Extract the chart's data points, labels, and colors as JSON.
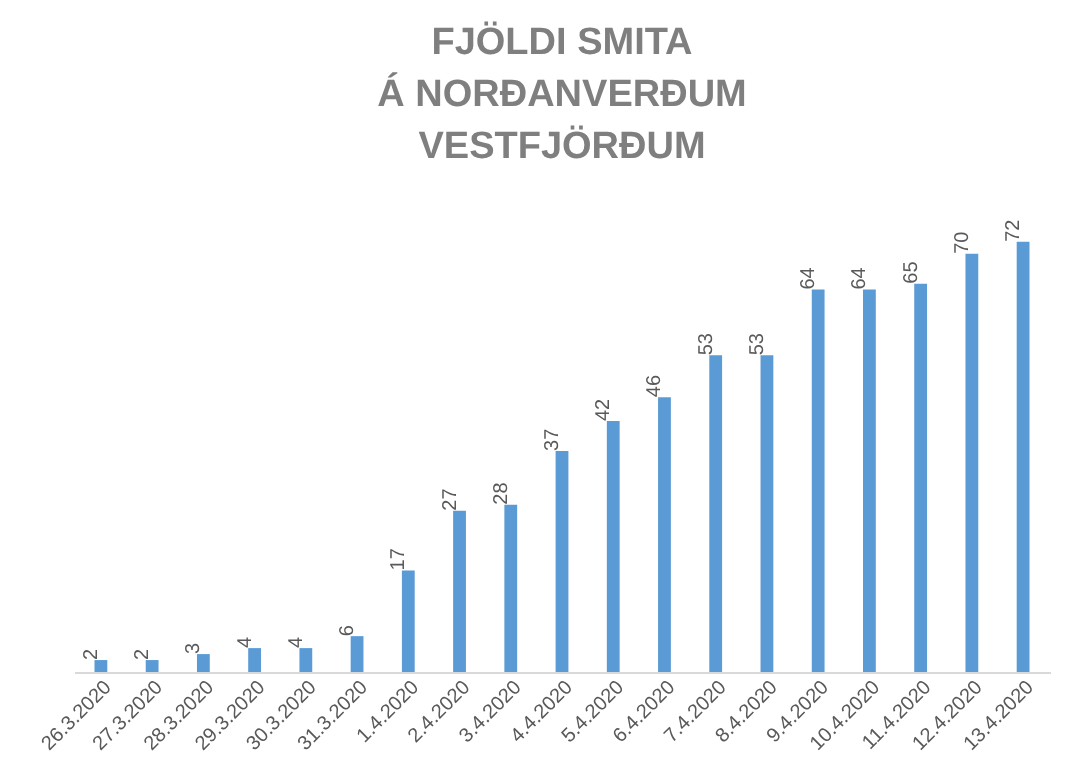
{
  "chart_data": {
    "type": "bar",
    "title": "FJÖLDI SMITA\nÁ NORÐANVERÐUM\nVESTFJÖRÐUM",
    "categories": [
      "26.3.2020",
      "27.3.2020",
      "28.3.2020",
      "29.3.2020",
      "30.3.2020",
      "31.3.2020",
      "1.4.2020",
      "2.4.2020",
      "3.4.2020",
      "4.4.2020",
      "5.4.2020",
      "6.4.2020",
      "7.4.2020",
      "8.4.2020",
      "9.4.2020",
      "10.4.2020",
      "11.4.2020",
      "12.4.2020",
      "13.4.2020"
    ],
    "values": [
      2,
      2,
      3,
      4,
      4,
      6,
      17,
      27,
      28,
      37,
      42,
      46,
      53,
      53,
      64,
      64,
      65,
      70,
      72
    ],
    "color": "#5b9bd5",
    "data_labels": true
  }
}
